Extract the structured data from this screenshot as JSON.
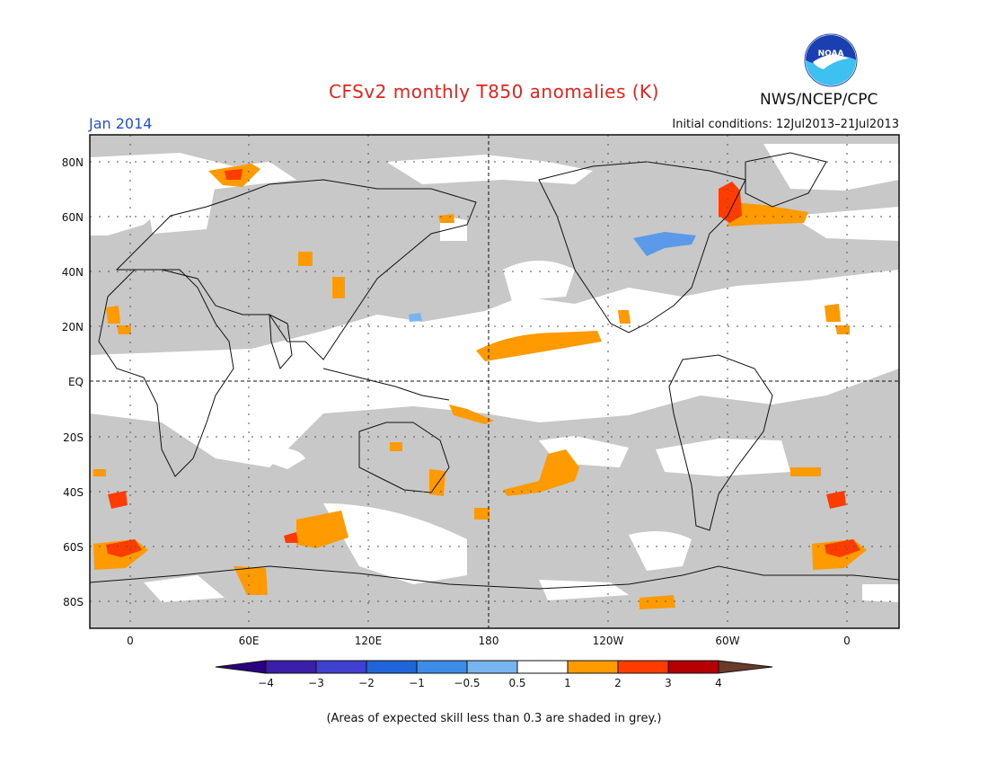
{
  "title": "CFSv2 monthly T850 anomalies (K)",
  "period": "Jan 2014",
  "initial_conditions": "Initial conditions: 12Jul2013–21Jul2013",
  "agency": "NWS/NCEP/CPC",
  "logo_text": "NOAA",
  "footnote": "(Areas of expected skill less than 0.3 are shaded in grey.)",
  "map": {
    "lat_labels": [
      "80N",
      "60N",
      "40N",
      "20N",
      "EQ",
      "20S",
      "40S",
      "60S",
      "80S"
    ],
    "lon_labels": [
      "0",
      "60E",
      "120E",
      "180",
      "120W",
      "60W",
      "0"
    ],
    "skill_shade_color": "#c8c8c8"
  },
  "legend": {
    "tick_labels": [
      "−4",
      "−3",
      "−2",
      "−1",
      "−0.5",
      "0.5",
      "1",
      "2",
      "3",
      "4"
    ],
    "colors": [
      "#3b1fa8",
      "#4040d0",
      "#1f64d8",
      "#3c8ce8",
      "#78b4f0",
      "#ffffff",
      "#ff9a00",
      "#ff3c00",
      "#b40000",
      "#c8a090"
    ],
    "end_colors": [
      "#2a0080",
      "#6b3a2a"
    ]
  }
}
